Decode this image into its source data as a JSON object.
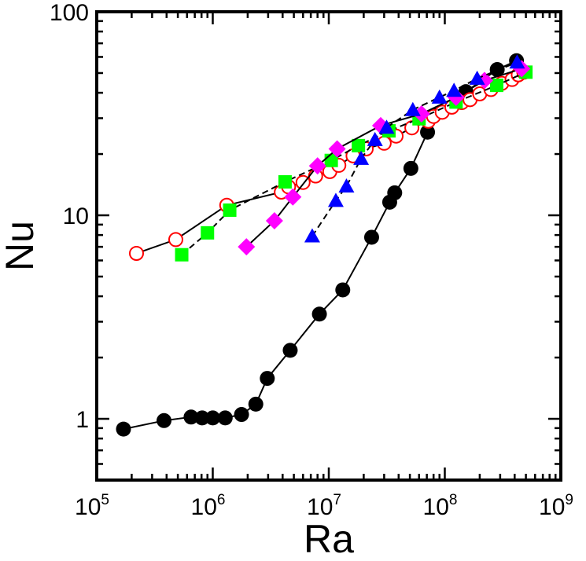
{
  "chart_data": {
    "type": "scatter",
    "title": "",
    "xlabel": "Ra",
    "ylabel": "Nu",
    "xscale": "log",
    "yscale": "log",
    "xlim": [
      100000,
      1000000000
    ],
    "ylim": [
      0.5,
      100
    ],
    "x_ticks": [
      {
        "base": "10",
        "exp": "5",
        "value": 100000
      },
      {
        "base": "10",
        "exp": "6",
        "value": 1000000
      },
      {
        "base": "10",
        "exp": "7",
        "value": 10000000
      },
      {
        "base": "10",
        "exp": "8",
        "value": 100000000
      },
      {
        "base": "10",
        "exp": "9",
        "value": 1000000000
      }
    ],
    "y_ticks": [
      {
        "label": "1",
        "value": 1
      },
      {
        "label": "10",
        "value": 10
      },
      {
        "label": "100",
        "value": 100
      }
    ],
    "series": [
      {
        "name": "black-filled-circles",
        "marker": "circle-filled",
        "color": "#000000",
        "line": "solid",
        "points": [
          [
            170000,
            0.89
          ],
          [
            380000,
            0.98
          ],
          [
            650000,
            1.02
          ],
          [
            810000,
            1.01
          ],
          [
            1000000,
            1.01
          ],
          [
            1280000,
            1.01
          ],
          [
            1770000,
            1.05
          ],
          [
            2350000,
            1.18
          ],
          [
            2950000,
            1.58
          ],
          [
            4650000,
            2.17
          ],
          [
            8300000,
            3.27
          ],
          [
            13200000,
            4.3
          ],
          [
            23400000,
            7.8
          ],
          [
            33500000,
            11.6
          ],
          [
            37000000,
            12.9
          ],
          [
            51000000,
            17.0
          ],
          [
            71000000,
            25.6
          ],
          [
            81000000,
            31.0
          ],
          [
            152000000,
            40.5
          ],
          [
            283000000,
            52.0
          ],
          [
            415000000,
            57.5
          ]
        ]
      },
      {
        "name": "red-open-circles",
        "marker": "circle-open",
        "color": "#ff0000",
        "line": "solid",
        "points": [
          [
            220000,
            6.5
          ],
          [
            480000,
            7.6
          ],
          [
            1320000,
            11.2
          ],
          [
            3900000,
            13.0
          ],
          [
            4500000,
            13.8
          ],
          [
            6000000,
            14.5
          ],
          [
            7700000,
            15.6
          ],
          [
            10200000,
            16.4
          ],
          [
            12200000,
            17.6
          ],
          [
            16200000,
            19.6
          ],
          [
            21000000,
            21.2
          ],
          [
            30000000,
            22.6
          ],
          [
            38000000,
            24.5
          ],
          [
            52000000,
            26.9
          ],
          [
            72000000,
            29.0
          ],
          [
            80000000,
            30.6
          ],
          [
            95000000,
            32.1
          ],
          [
            115000000,
            34.0
          ],
          [
            140000000,
            35.8
          ],
          [
            165000000,
            37.0
          ],
          [
            200000000,
            39.5
          ],
          [
            250000000,
            41.5
          ],
          [
            310000000,
            44.5
          ],
          [
            380000000,
            46.5
          ],
          [
            430000000,
            49.0
          ],
          [
            480000000,
            50.5
          ]
        ]
      },
      {
        "name": "green-squares",
        "marker": "square-filled",
        "color": "#00ff00",
        "line": "dashed",
        "points": [
          [
            540000,
            6.4
          ],
          [
            900000,
            8.2
          ],
          [
            1400000,
            10.6
          ],
          [
            4200000,
            14.6
          ],
          [
            10500000,
            18.6
          ],
          [
            18000000,
            22.0
          ],
          [
            33000000,
            26.0
          ],
          [
            60000000,
            29.8
          ],
          [
            125000000,
            36.0
          ],
          [
            280000000,
            43.5
          ],
          [
            500000000,
            50.5
          ]
        ]
      },
      {
        "name": "magenta-diamonds",
        "marker": "diamond-filled",
        "color": "#ff00ff",
        "line": "solid",
        "points": [
          [
            1950000,
            7.0
          ],
          [
            3400000,
            9.4
          ],
          [
            4900000,
            12.3
          ],
          [
            8000000,
            17.5
          ],
          [
            11800000,
            21.2
          ],
          [
            28000000,
            27.6
          ],
          [
            63000000,
            31.5
          ],
          [
            125000000,
            38.0
          ],
          [
            220000000,
            46.0
          ],
          [
            460000000,
            52.5
          ]
        ]
      },
      {
        "name": "blue-triangles",
        "marker": "triangle-filled",
        "color": "#0000ff",
        "line": "dashed",
        "points": [
          [
            7200000,
            7.9
          ],
          [
            11500000,
            11.8
          ],
          [
            14200000,
            13.9
          ],
          [
            19000000,
            19.0
          ],
          [
            25000000,
            23.5
          ],
          [
            31500000,
            27.0
          ],
          [
            53000000,
            33.0
          ],
          [
            90000000,
            38.0
          ],
          [
            120000000,
            41.0
          ],
          [
            190000000,
            47.0
          ],
          [
            420000000,
            56.5
          ]
        ]
      }
    ]
  }
}
